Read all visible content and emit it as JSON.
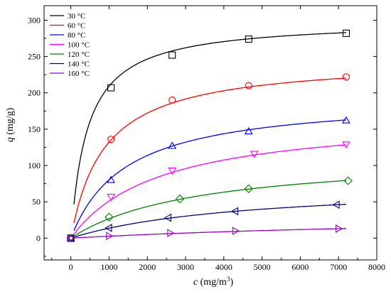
{
  "chart_data": {
    "type": "line",
    "title": "",
    "xlabel": {
      "var": "c",
      "unit_open": " (mg/m",
      "unit_sup": "3",
      "unit_close": ")"
    },
    "ylabel": {
      "var": "q",
      "unit": " (mg/g)"
    },
    "xlim": [
      -700,
      8000
    ],
    "ylim": [
      -30,
      320
    ],
    "xticks": [
      0,
      1000,
      2000,
      3000,
      4000,
      5000,
      6000,
      7000,
      8000
    ],
    "yticks": [
      0,
      50,
      100,
      150,
      200,
      250,
      300
    ],
    "grid": false,
    "legend": {
      "placement": "top-left"
    },
    "series": [
      {
        "name": "30 °C",
        "color": "#000000",
        "marker": "square",
        "points": [
          [
            0,
            0
          ],
          [
            1050,
            207
          ],
          [
            2650,
            252
          ],
          [
            4650,
            274
          ],
          [
            7200,
            282
          ]
        ],
        "fit": {
          "qm": 300,
          "K": 0.0023
        }
      },
      {
        "name": "60 °C",
        "color": "#ff0000",
        "marker": "circle",
        "points": [
          [
            0,
            0
          ],
          [
            1050,
            136
          ],
          [
            2650,
            190
          ],
          [
            4650,
            210
          ],
          [
            7200,
            222
          ]
        ],
        "fit": {
          "qm": 247,
          "K": 0.00115
        }
      },
      {
        "name": "80 °C",
        "color": "#0000ff",
        "marker": "triangle-up",
        "points": [
          [
            0,
            0
          ],
          [
            1050,
            80
          ],
          [
            2650,
            127
          ],
          [
            4650,
            147
          ],
          [
            7200,
            162
          ]
        ],
        "fit": {
          "qm": 195,
          "K": 0.0007
        }
      },
      {
        "name": "100 °C",
        "color": "#ff00ff",
        "marker": "triangle-down",
        "points": [
          [
            0,
            0
          ],
          [
            1050,
            57
          ],
          [
            2650,
            93
          ],
          [
            4800,
            116
          ],
          [
            7200,
            129
          ]
        ],
        "fit": {
          "qm": 170,
          "K": 0.00043
        }
      },
      {
        "name": "120 °C",
        "color": "#008000",
        "marker": "diamond",
        "points": [
          [
            0,
            0
          ],
          [
            1000,
            29
          ],
          [
            2850,
            54
          ],
          [
            4650,
            68
          ],
          [
            7250,
            79
          ]
        ],
        "fit": {
          "qm": 116,
          "K": 0.0003
        }
      },
      {
        "name": "140 °C",
        "color": "#000080",
        "marker": "triangle-left",
        "points": [
          [
            0,
            0
          ],
          [
            1000,
            14
          ],
          [
            2550,
            28
          ],
          [
            4300,
            37
          ],
          [
            6950,
            46
          ]
        ],
        "fit": {
          "qm": 76,
          "K": 0.00022
        }
      },
      {
        "name": "160 °C",
        "color": "#9900cc",
        "marker": "triangle-right",
        "points": [
          [
            0,
            0
          ],
          [
            1000,
            3
          ],
          [
            2600,
            7
          ],
          [
            4300,
            10
          ],
          [
            7000,
            13
          ]
        ],
        "fit": {
          "qm": 37,
          "K": 7.8e-05
        }
      }
    ]
  }
}
